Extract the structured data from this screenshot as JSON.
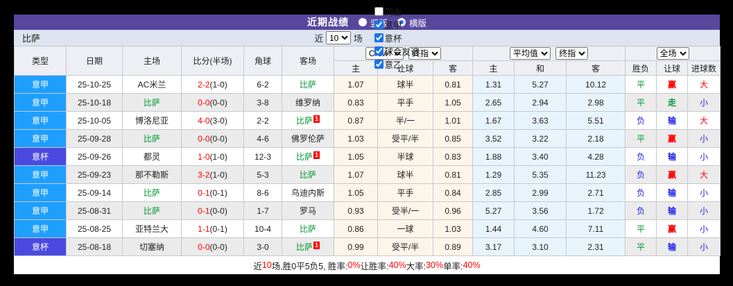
{
  "title_bar": {
    "title": "近期战绩",
    "radios": [
      {
        "label": "竖版",
        "selected": false
      },
      {
        "label": "横版",
        "selected": true
      }
    ]
  },
  "filter": {
    "team": "比萨",
    "near_label": "近",
    "count_value": "10",
    "matches_label": "场",
    "checkboxes": [
      {
        "label": "同主",
        "checked": false
      },
      {
        "label": "意甲",
        "checked": true
      },
      {
        "label": "意杯",
        "checked": true
      },
      {
        "label": "球会友谊",
        "checked": true
      },
      {
        "label": "意乙",
        "checked": true
      }
    ]
  },
  "colors": {
    "title_bar_bg": "#57489E",
    "league_serie_a": "#1E9FFF",
    "league_cup": "#4A4AE0",
    "team_green": "#009933",
    "score_red": "#ff0000",
    "verdict_blue": "#2222ee",
    "crow_col_bg": "#fcf5e9",
    "avg_col_bg": "#e8f4fb"
  },
  "table": {
    "static_headers": [
      "类型",
      "日期",
      "主场",
      "比分(半场)",
      "角球",
      "客场"
    ],
    "group_crow": {
      "bookmaker": "Crow*",
      "stage": "终指",
      "cols": [
        "主",
        "让球",
        "客"
      ]
    },
    "group_avg": {
      "name": "平均值",
      "stage": "终指",
      "cols": [
        "主",
        "和",
        "客"
      ]
    },
    "group_verdict": {
      "scope": "全场",
      "cols": [
        "胜负",
        "让球",
        "进球数"
      ]
    },
    "rows": [
      {
        "league": "意甲",
        "league_color": "#1E9FFF",
        "date": "25-10-25",
        "home": "AC米兰",
        "home_is_focus": false,
        "score": "2-2",
        "half": "(1-0)",
        "corner": "6-2",
        "away": "比萨",
        "away_is_focus": true,
        "away_badge": null,
        "crow_home": "1.07",
        "crow_handicap": "球半",
        "crow_away": "0.81",
        "avg_home": "1.31",
        "avg_draw": "5.27",
        "avg_away": "10.12",
        "result": {
          "text": "平",
          "color": "green"
        },
        "handicap": {
          "text": "赢",
          "color": "red"
        },
        "goals": {
          "text": "大",
          "color": "red"
        }
      },
      {
        "league": "意甲",
        "league_color": "#1E9FFF",
        "date": "25-10-18",
        "home": "比萨",
        "home_is_focus": true,
        "score": "0-0",
        "half": "(0-0)",
        "corner": "3-8",
        "away": "维罗纳",
        "away_is_focus": false,
        "away_badge": null,
        "crow_home": "0.83",
        "crow_handicap": "平手",
        "crow_away": "1.05",
        "avg_home": "2.65",
        "avg_draw": "2.94",
        "avg_away": "2.98",
        "result": {
          "text": "平",
          "color": "green"
        },
        "handicap": {
          "text": "走",
          "color": "green"
        },
        "goals": {
          "text": "小",
          "color": "blue"
        }
      },
      {
        "league": "意甲",
        "league_color": "#1E9FFF",
        "date": "25-10-05",
        "home": "博洛尼亚",
        "home_is_focus": false,
        "score": "4-0",
        "half": "(3-0)",
        "corner": "2-2",
        "away": "比萨",
        "away_is_focus": true,
        "away_badge": "1",
        "crow_home": "0.87",
        "crow_handicap": "半/一",
        "crow_away": "1.01",
        "avg_home": "1.67",
        "avg_draw": "3.63",
        "avg_away": "5.51",
        "result": {
          "text": "负",
          "color": "blue"
        },
        "handicap": {
          "text": "输",
          "color": "blue"
        },
        "goals": {
          "text": "大",
          "color": "red"
        }
      },
      {
        "league": "意甲",
        "league_color": "#1E9FFF",
        "date": "25-09-28",
        "home": "比萨",
        "home_is_focus": true,
        "score": "0-0",
        "half": "(0-0)",
        "corner": "4-6",
        "away": "佛罗伦萨",
        "away_is_focus": false,
        "away_badge": null,
        "crow_home": "1.03",
        "crow_handicap": "受平/半",
        "crow_away": "0.85",
        "avg_home": "3.52",
        "avg_draw": "3.22",
        "avg_away": "2.18",
        "result": {
          "text": "平",
          "color": "green"
        },
        "handicap": {
          "text": "赢",
          "color": "red"
        },
        "goals": {
          "text": "小",
          "color": "blue"
        }
      },
      {
        "league": "意杯",
        "league_color": "#4A4AE0",
        "date": "25-09-26",
        "home": "都灵",
        "home_is_focus": false,
        "score": "1-0",
        "half": "(1-0)",
        "corner": "12-3",
        "away": "比萨",
        "away_is_focus": true,
        "away_badge": "1",
        "crow_home": "1.05",
        "crow_handicap": "半球",
        "crow_away": "0.83",
        "avg_home": "1.88",
        "avg_draw": "3.40",
        "avg_away": "4.28",
        "result": {
          "text": "负",
          "color": "blue"
        },
        "handicap": {
          "text": "输",
          "color": "blue"
        },
        "goals": {
          "text": "小",
          "color": "blue"
        }
      },
      {
        "league": "意甲",
        "league_color": "#1E9FFF",
        "date": "25-09-23",
        "home": "那不勒斯",
        "home_is_focus": false,
        "score": "3-2",
        "half": "(1-0)",
        "corner": "5-3",
        "away": "比萨",
        "away_is_focus": true,
        "away_badge": null,
        "crow_home": "1.07",
        "crow_handicap": "球半",
        "crow_away": "0.81",
        "avg_home": "1.29",
        "avg_draw": "5.35",
        "avg_away": "11.23",
        "result": {
          "text": "负",
          "color": "blue"
        },
        "handicap": {
          "text": "赢",
          "color": "red"
        },
        "goals": {
          "text": "大",
          "color": "red"
        }
      },
      {
        "league": "意甲",
        "league_color": "#1E9FFF",
        "date": "25-09-14",
        "home": "比萨",
        "home_is_focus": true,
        "score": "0-1",
        "half": "(0-1)",
        "corner": "8-6",
        "away": "乌迪内斯",
        "away_is_focus": false,
        "away_badge": null,
        "crow_home": "1.05",
        "crow_handicap": "平手",
        "crow_away": "0.84",
        "avg_home": "2.85",
        "avg_draw": "2.99",
        "avg_away": "2.71",
        "result": {
          "text": "负",
          "color": "blue"
        },
        "handicap": {
          "text": "输",
          "color": "blue"
        },
        "goals": {
          "text": "小",
          "color": "blue"
        }
      },
      {
        "league": "意甲",
        "league_color": "#1E9FFF",
        "date": "25-08-31",
        "home": "比萨",
        "home_is_focus": true,
        "score": "0-1",
        "half": "(0-0)",
        "corner": "1-7",
        "away": "罗马",
        "away_is_focus": false,
        "away_badge": null,
        "crow_home": "0.93",
        "crow_handicap": "受半/一",
        "crow_away": "0.96",
        "avg_home": "5.27",
        "avg_draw": "3.56",
        "avg_away": "1.72",
        "result": {
          "text": "负",
          "color": "blue"
        },
        "handicap": {
          "text": "输",
          "color": "blue"
        },
        "goals": {
          "text": "小",
          "color": "blue"
        }
      },
      {
        "league": "意甲",
        "league_color": "#1E9FFF",
        "date": "25-08-25",
        "home": "亚特兰大",
        "home_is_focus": false,
        "score": "1-1",
        "half": "(0-1)",
        "corner": "10-4",
        "away": "比萨",
        "away_is_focus": true,
        "away_badge": null,
        "crow_home": "0.86",
        "crow_handicap": "一球",
        "crow_away": "1.03",
        "avg_home": "1.44",
        "avg_draw": "4.60",
        "avg_away": "7.11",
        "result": {
          "text": "平",
          "color": "green"
        },
        "handicap": {
          "text": "赢",
          "color": "red"
        },
        "goals": {
          "text": "小",
          "color": "blue"
        }
      },
      {
        "league": "意杯",
        "league_color": "#4A4AE0",
        "date": "25-08-18",
        "home": "切塞纳",
        "home_is_focus": false,
        "score": "0-0",
        "half": "(0-0)",
        "corner": "3-0",
        "away": "比萨",
        "away_is_focus": true,
        "away_badge": "1",
        "crow_home": "0.99",
        "crow_handicap": "受平/半",
        "crow_away": "0.89",
        "avg_home": "3.17",
        "avg_draw": "3.10",
        "avg_away": "2.31",
        "result": {
          "text": "平",
          "color": "green"
        },
        "handicap": {
          "text": "输",
          "color": "blue"
        },
        "goals": {
          "text": "小",
          "color": "blue"
        }
      }
    ]
  },
  "summary": {
    "segments": [
      {
        "text": "近",
        "red": false
      },
      {
        "text": "10",
        "red": true
      },
      {
        "text": "场,胜0平5负5, 胜率:",
        "red": false
      },
      {
        "text": "0%",
        "red": true
      },
      {
        "text": " 让胜率:",
        "red": false
      },
      {
        "text": "40%",
        "red": true
      },
      {
        "text": " 大率:",
        "red": false
      },
      {
        "text": "30%",
        "red": true
      },
      {
        "text": " 单率:",
        "red": false
      },
      {
        "text": "40%",
        "red": true
      }
    ]
  }
}
